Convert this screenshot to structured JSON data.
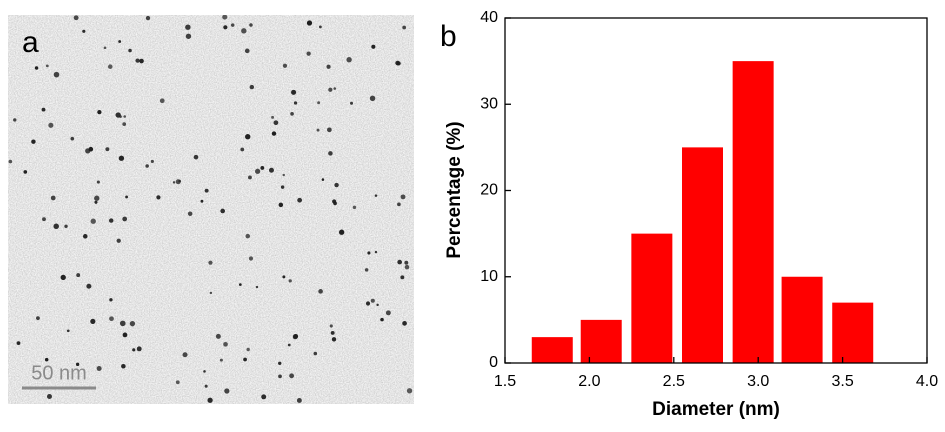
{
  "image": {
    "label": "a",
    "scale_bar": "50 nm"
  },
  "chart_data": {
    "type": "bar",
    "panel_label": "b",
    "x_label": "Diameter (nm)",
    "y_label": "Percentage (%)",
    "x": [
      1.78,
      2.07,
      2.37,
      2.67,
      2.97,
      3.26,
      3.56
    ],
    "values": [
      3,
      5,
      15,
      25,
      35,
      10,
      7
    ],
    "color": "#ff0000",
    "xlim": [
      1.5,
      4.0
    ],
    "xticks": [
      1.5,
      {
        "value": 2,
        "label": "2.0"
      },
      2.5,
      {
        "value": 3,
        "label": "3.0"
      },
      3.5,
      {
        "value": 4,
        "label": "4.0"
      }
    ],
    "ylim": [
      0,
      40
    ],
    "yticks": [
      0,
      10,
      20,
      30,
      40
    ],
    "grid": false
  }
}
